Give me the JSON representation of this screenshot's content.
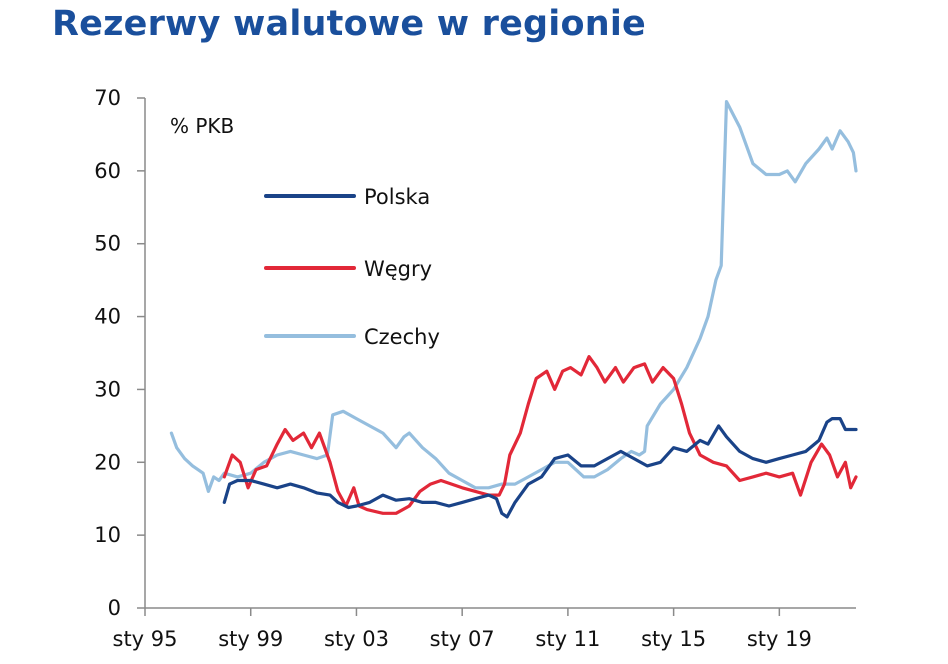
{
  "title": "Rezerwy walutowe w regionie",
  "chart_data": {
    "type": "line",
    "title": "Rezerwy walutowe w regionie",
    "unit_label": "% PKB",
    "xlabel": "",
    "ylabel": "",
    "ylim": [
      0,
      70
    ],
    "xlim": [
      1995.0,
      2021.9
    ],
    "y_ticks": [
      0,
      10,
      20,
      30,
      40,
      50,
      60,
      70
    ],
    "x_ticks": [
      {
        "value": 1995,
        "label": "sty 95"
      },
      {
        "value": 1999,
        "label": "sty 99"
      },
      {
        "value": 2003,
        "label": "sty 03"
      },
      {
        "value": 2007,
        "label": "sty 07"
      },
      {
        "value": 2011,
        "label": "sty 11"
      },
      {
        "value": 2015,
        "label": "sty 15"
      },
      {
        "value": 2019,
        "label": "sty 19"
      }
    ],
    "grid": false,
    "legend_position": "top-left",
    "series": [
      {
        "name": "Polska",
        "color": "#1a4388",
        "points": [
          [
            1998.0,
            14.5
          ],
          [
            1998.2,
            17.0
          ],
          [
            1998.5,
            17.5
          ],
          [
            1999.0,
            17.5
          ],
          [
            1999.5,
            17.0
          ],
          [
            2000.0,
            16.5
          ],
          [
            2000.5,
            17.0
          ],
          [
            2001.0,
            16.5
          ],
          [
            2001.5,
            15.8
          ],
          [
            2002.0,
            15.5
          ],
          [
            2002.3,
            14.5
          ],
          [
            2002.7,
            13.8
          ],
          [
            2003.0,
            14.0
          ],
          [
            2003.5,
            14.5
          ],
          [
            2004.0,
            15.5
          ],
          [
            2004.5,
            14.8
          ],
          [
            2005.0,
            15.0
          ],
          [
            2005.5,
            14.5
          ],
          [
            2006.0,
            14.5
          ],
          [
            2006.5,
            14.0
          ],
          [
            2007.0,
            14.5
          ],
          [
            2007.5,
            15.0
          ],
          [
            2008.0,
            15.5
          ],
          [
            2008.3,
            15.0
          ],
          [
            2008.5,
            13.0
          ],
          [
            2008.7,
            12.5
          ],
          [
            2009.0,
            14.5
          ],
          [
            2009.5,
            17.0
          ],
          [
            2010.0,
            18.0
          ],
          [
            2010.5,
            20.5
          ],
          [
            2011.0,
            21.0
          ],
          [
            2011.5,
            19.5
          ],
          [
            2012.0,
            19.5
          ],
          [
            2012.5,
            20.5
          ],
          [
            2013.0,
            21.5
          ],
          [
            2013.5,
            20.5
          ],
          [
            2014.0,
            19.5
          ],
          [
            2014.5,
            20.0
          ],
          [
            2015.0,
            22.0
          ],
          [
            2015.5,
            21.5
          ],
          [
            2016.0,
            23.0
          ],
          [
            2016.3,
            22.5
          ],
          [
            2016.7,
            25.0
          ],
          [
            2017.0,
            23.5
          ],
          [
            2017.5,
            21.5
          ],
          [
            2018.0,
            20.5
          ],
          [
            2018.5,
            20.0
          ],
          [
            2019.0,
            20.5
          ],
          [
            2019.5,
            21.0
          ],
          [
            2020.0,
            21.5
          ],
          [
            2020.5,
            23.0
          ],
          [
            2020.8,
            25.5
          ],
          [
            2021.0,
            26.0
          ],
          [
            2021.3,
            26.0
          ],
          [
            2021.5,
            24.5
          ],
          [
            2021.9,
            24.5
          ]
        ]
      },
      {
        "name": "Węgry",
        "color": "#e22838",
        "points": [
          [
            1998.0,
            18.0
          ],
          [
            1998.3,
            21.0
          ],
          [
            1998.6,
            20.0
          ],
          [
            1998.9,
            16.5
          ],
          [
            1999.2,
            19.0
          ],
          [
            1999.6,
            19.5
          ],
          [
            2000.0,
            22.5
          ],
          [
            2000.3,
            24.5
          ],
          [
            2000.6,
            23.0
          ],
          [
            2001.0,
            24.0
          ],
          [
            2001.3,
            22.0
          ],
          [
            2001.6,
            24.0
          ],
          [
            2002.0,
            20.0
          ],
          [
            2002.3,
            16.0
          ],
          [
            2002.6,
            14.0
          ],
          [
            2002.9,
            16.5
          ],
          [
            2003.1,
            14.0
          ],
          [
            2003.4,
            13.5
          ],
          [
            2004.0,
            13.0
          ],
          [
            2004.5,
            13.0
          ],
          [
            2005.0,
            14.0
          ],
          [
            2005.4,
            16.0
          ],
          [
            2005.8,
            17.0
          ],
          [
            2006.2,
            17.5
          ],
          [
            2006.6,
            17.0
          ],
          [
            2007.0,
            16.5
          ],
          [
            2007.5,
            16.0
          ],
          [
            2008.0,
            15.5
          ],
          [
            2008.4,
            15.5
          ],
          [
            2008.6,
            17.0
          ],
          [
            2008.8,
            21.0
          ],
          [
            2009.2,
            24.0
          ],
          [
            2009.5,
            28.0
          ],
          [
            2009.8,
            31.5
          ],
          [
            2010.2,
            32.5
          ],
          [
            2010.5,
            30.0
          ],
          [
            2010.8,
            32.5
          ],
          [
            2011.1,
            33.0
          ],
          [
            2011.5,
            32.0
          ],
          [
            2011.8,
            34.5
          ],
          [
            2012.1,
            33.0
          ],
          [
            2012.4,
            31.0
          ],
          [
            2012.8,
            33.0
          ],
          [
            2013.1,
            31.0
          ],
          [
            2013.5,
            33.0
          ],
          [
            2013.9,
            33.5
          ],
          [
            2014.2,
            31.0
          ],
          [
            2014.6,
            33.0
          ],
          [
            2015.0,
            31.5
          ],
          [
            2015.3,
            28.0
          ],
          [
            2015.6,
            24.0
          ],
          [
            2016.0,
            21.0
          ],
          [
            2016.5,
            20.0
          ],
          [
            2017.0,
            19.5
          ],
          [
            2017.5,
            17.5
          ],
          [
            2018.0,
            18.0
          ],
          [
            2018.5,
            18.5
          ],
          [
            2019.0,
            18.0
          ],
          [
            2019.5,
            18.5
          ],
          [
            2019.8,
            15.5
          ],
          [
            2020.2,
            20.0
          ],
          [
            2020.6,
            22.5
          ],
          [
            2020.9,
            21.0
          ],
          [
            2021.2,
            18.0
          ],
          [
            2021.5,
            20.0
          ],
          [
            2021.7,
            16.5
          ],
          [
            2021.9,
            18.0
          ]
        ]
      },
      {
        "name": "Czechy",
        "color": "#95bede",
        "points": [
          [
            1996.0,
            24.0
          ],
          [
            1996.2,
            22.0
          ],
          [
            1996.5,
            20.5
          ],
          [
            1996.8,
            19.5
          ],
          [
            1997.0,
            19.0
          ],
          [
            1997.2,
            18.5
          ],
          [
            1997.4,
            16.0
          ],
          [
            1997.6,
            18.0
          ],
          [
            1997.8,
            17.5
          ],
          [
            1998.0,
            18.5
          ],
          [
            1998.5,
            18.0
          ],
          [
            1999.0,
            18.5
          ],
          [
            1999.5,
            20.0
          ],
          [
            2000.0,
            21.0
          ],
          [
            2000.5,
            21.5
          ],
          [
            2001.0,
            21.0
          ],
          [
            2001.5,
            20.5
          ],
          [
            2001.9,
            21.0
          ],
          [
            2002.1,
            26.5
          ],
          [
            2002.5,
            27.0
          ],
          [
            2003.0,
            26.0
          ],
          [
            2003.5,
            25.0
          ],
          [
            2004.0,
            24.0
          ],
          [
            2004.5,
            22.0
          ],
          [
            2004.8,
            23.5
          ],
          [
            2005.0,
            24.0
          ],
          [
            2005.5,
            22.0
          ],
          [
            2006.0,
            20.5
          ],
          [
            2006.5,
            18.5
          ],
          [
            2007.0,
            17.5
          ],
          [
            2007.5,
            16.5
          ],
          [
            2008.0,
            16.5
          ],
          [
            2008.5,
            17.0
          ],
          [
            2009.0,
            17.0
          ],
          [
            2009.5,
            18.0
          ],
          [
            2010.0,
            19.0
          ],
          [
            2010.5,
            20.0
          ],
          [
            2011.0,
            20.0
          ],
          [
            2011.3,
            19.0
          ],
          [
            2011.6,
            18.0
          ],
          [
            2012.0,
            18.0
          ],
          [
            2012.5,
            19.0
          ],
          [
            2013.0,
            20.5
          ],
          [
            2013.4,
            21.5
          ],
          [
            2013.7,
            21.0
          ],
          [
            2013.9,
            21.5
          ],
          [
            2014.0,
            25.0
          ],
          [
            2014.5,
            28.0
          ],
          [
            2015.0,
            30.0
          ],
          [
            2015.5,
            33.0
          ],
          [
            2016.0,
            37.0
          ],
          [
            2016.3,
            40.0
          ],
          [
            2016.6,
            45.0
          ],
          [
            2016.8,
            47.0
          ],
          [
            2017.0,
            69.5
          ],
          [
            2017.5,
            66.0
          ],
          [
            2018.0,
            61.0
          ],
          [
            2018.5,
            59.5
          ],
          [
            2019.0,
            59.5
          ],
          [
            2019.3,
            60.0
          ],
          [
            2019.6,
            58.5
          ],
          [
            2020.0,
            61.0
          ],
          [
            2020.5,
            63.0
          ],
          [
            2020.8,
            64.5
          ],
          [
            2021.0,
            63.0
          ],
          [
            2021.3,
            65.5
          ],
          [
            2021.6,
            64.0
          ],
          [
            2021.8,
            62.5
          ],
          [
            2021.9,
            60.0
          ]
        ]
      }
    ]
  }
}
